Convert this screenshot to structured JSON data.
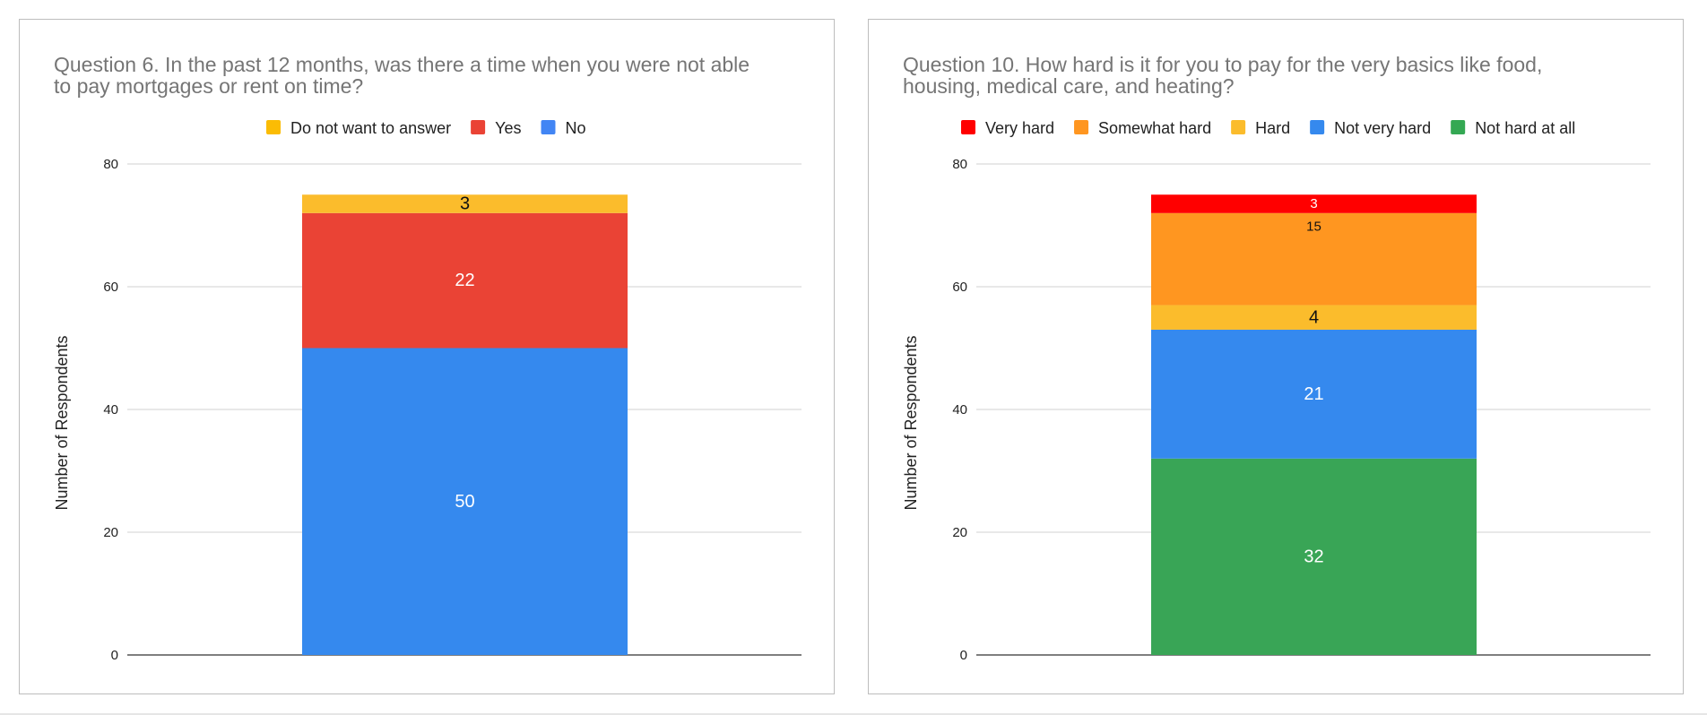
{
  "chart_data": [
    {
      "type": "bar",
      "stacked": true,
      "title_lines": [
        "Question 6. In the past 12 months, was there a time when you were not able",
        "to pay mortgages or rent on time?"
      ],
      "xlabel": "",
      "ylabel": "Number of Respondents",
      "ylim": [
        0,
        80
      ],
      "yticks": [
        0,
        20,
        40,
        60,
        80
      ],
      "grid": true,
      "legend_position": "top",
      "legend": [
        {
          "name": "Do not want to answer",
          "color": "#fbbc04"
        },
        {
          "name": "Yes",
          "color": "#ea4335"
        },
        {
          "name": "No",
          "color": "#4285f4"
        }
      ],
      "series": [
        {
          "name": "No",
          "value": 50,
          "color": "#3589ee",
          "label": "50",
          "label_color": "#ffffff"
        },
        {
          "name": "Yes",
          "value": 22,
          "color": "#ea4335",
          "label": "22",
          "label_color": "#ffffff"
        },
        {
          "name": "Do not want to answer",
          "value": 3,
          "color": "#fbbc2c",
          "label": "3",
          "label_color": "#111111"
        }
      ]
    },
    {
      "type": "bar",
      "stacked": true,
      "title_lines": [
        "Question 10. How hard is it for you to pay for the very basics like food,",
        "housing, medical care, and heating?"
      ],
      "xlabel": "",
      "ylabel": "Number of Respondents",
      "ylim": [
        0,
        80
      ],
      "yticks": [
        0,
        20,
        40,
        60,
        80
      ],
      "grid": true,
      "legend_position": "top",
      "legend": [
        {
          "name": "Very hard",
          "color": "#ff0000"
        },
        {
          "name": "Somewhat hard",
          "color": "#ff9620"
        },
        {
          "name": "Hard",
          "color": "#fbbc2c"
        },
        {
          "name": "Not very hard",
          "color": "#3589ee"
        },
        {
          "name": "Not hard at all",
          "color": "#34a853"
        }
      ],
      "series": [
        {
          "name": "Not hard at all",
          "value": 32,
          "color": "#39a556",
          "label": "32",
          "label_color": "#ffffff"
        },
        {
          "name": "Not very hard",
          "value": 21,
          "color": "#3589ee",
          "label": "21",
          "label_color": "#ffffff"
        },
        {
          "name": "Hard",
          "value": 4,
          "color": "#fbbc2c",
          "label": "4",
          "label_color": "#111111"
        },
        {
          "name": "Somewhat hard",
          "value": 15,
          "color": "#ff9620",
          "label": "15",
          "label_color": "#111111",
          "label_align": "top"
        },
        {
          "name": "Very hard",
          "value": 3,
          "color": "#ff0000",
          "label": "3",
          "label_color": "#ffffff"
        }
      ]
    }
  ]
}
